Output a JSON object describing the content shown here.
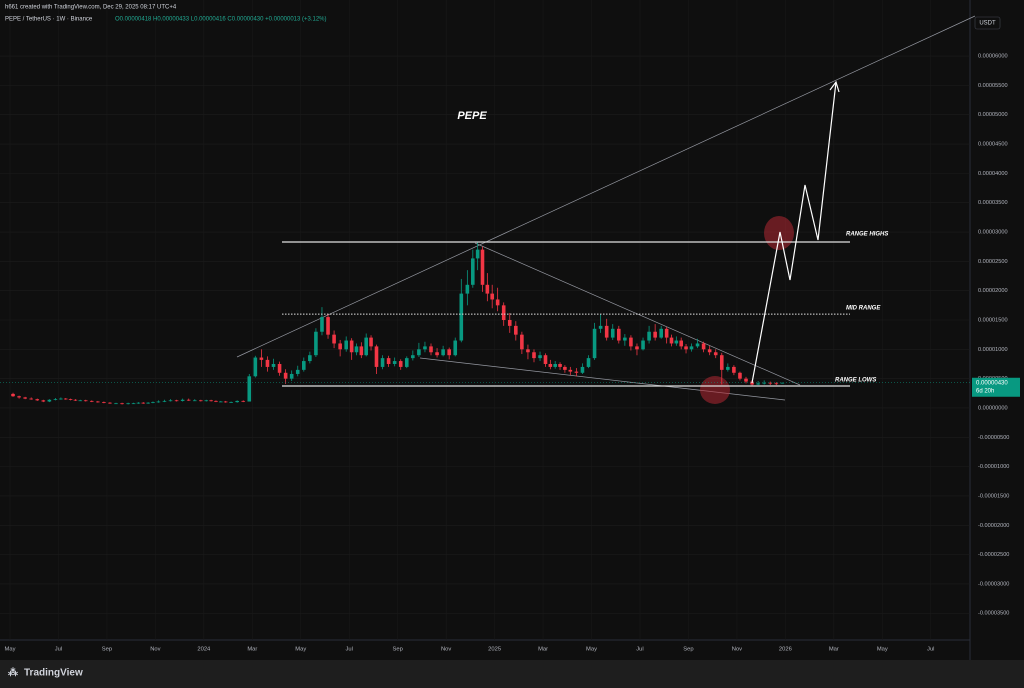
{
  "header": {
    "attribution": "h661 created with TradingView.com, Dec 29, 2025 08:17 UTC+4",
    "symbol": "PEPE / TetherUS · 1W · Binance",
    "ohlc_text": "O0.00000418 H0.00000433 L0.00000416 C0.00000430 +0.00000013 (+3.12%)"
  },
  "currency": "USDT",
  "footer": {
    "brand": "TradingView"
  },
  "chart_data": {
    "type": "candlestick",
    "title": "PEPE",
    "up_color": "#089981",
    "down_color": "#f23645",
    "x": [
      "2023-05",
      "2023-05",
      "2023-05",
      "2023-05",
      "2023-06",
      "2023-06",
      "2023-06",
      "2023-06",
      "2023-07",
      "2023-07",
      "2023-07",
      "2023-07",
      "2023-07",
      "2023-08",
      "2023-08",
      "2023-08",
      "2023-08",
      "2023-09",
      "2023-09",
      "2023-09",
      "2023-09",
      "2023-10",
      "2023-10",
      "2023-10",
      "2023-10",
      "2023-10",
      "2023-11",
      "2023-11",
      "2023-11",
      "2023-11",
      "2023-12",
      "2023-12",
      "2023-12",
      "2023-12",
      "2024-01",
      "2024-01",
      "2024-01",
      "2024-01",
      "2024-01",
      "2024-02",
      "2024-02",
      "2024-02",
      "2024-02",
      "2024-03",
      "2024-03",
      "2024-03",
      "2024-03",
      "2024-04",
      "2024-04",
      "2024-04",
      "2024-04",
      "2024-05",
      "2024-05",
      "2024-05",
      "2024-05",
      "2024-06",
      "2024-06",
      "2024-06",
      "2024-06",
      "2024-07",
      "2024-07",
      "2024-07",
      "2024-07",
      "2024-07",
      "2024-08",
      "2024-08",
      "2024-08",
      "2024-08",
      "2024-09",
      "2024-09",
      "2024-09",
      "2024-09",
      "2024-10",
      "2024-10",
      "2024-10",
      "2024-10",
      "2024-11",
      "2024-11",
      "2024-11",
      "2024-11",
      "2024-12",
      "2024-12",
      "2024-12",
      "2024-12",
      "2024-12",
      "2025-01",
      "2025-01",
      "2025-01",
      "2025-01",
      "2025-02",
      "2025-02",
      "2025-02",
      "2025-02",
      "2025-03",
      "2025-03",
      "2025-03",
      "2025-03",
      "2025-03",
      "2025-04",
      "2025-04",
      "2025-04",
      "2025-04",
      "2025-05",
      "2025-05",
      "2025-05",
      "2025-05",
      "2025-06",
      "2025-06",
      "2025-06",
      "2025-06",
      "2025-07",
      "2025-07",
      "2025-07",
      "2025-07",
      "2025-08",
      "2025-08",
      "2025-08",
      "2025-08",
      "2025-08",
      "2025-09",
      "2025-09",
      "2025-09",
      "2025-09",
      "2025-10",
      "2025-10",
      "2025-10",
      "2025-10",
      "2025-11",
      "2025-11",
      "2025-11",
      "2025-11",
      "2025-12",
      "2025-12",
      "2025-12",
      "2025-12"
    ],
    "ohlc": [
      [
        2.4e-06,
        2.6e-06,
        1.9e-06,
        2e-06
      ],
      [
        2e-06,
        2.1e-06,
        1.6e-06,
        1.8e-06
      ],
      [
        1.8e-06,
        1.9e-06,
        1.5e-06,
        1.6e-06
      ],
      [
        1.6e-06,
        1.8e-06,
        1.4e-06,
        1.5e-06
      ],
      [
        1.5e-06,
        1.6e-06,
        1.2e-06,
        1.3e-06
      ],
      [
        1.3e-06,
        1.4e-06,
        1e-06,
        1.1e-06
      ],
      [
        1.1e-06,
        1.5e-06,
        1e-06,
        1.4e-06
      ],
      [
        1.4e-06,
        1.7e-06,
        1.3e-06,
        1.5e-06
      ],
      [
        1.5e-06,
        1.8e-06,
        1.4e-06,
        1.6e-06
      ],
      [
        1.6e-06,
        1.7e-06,
        1.4e-06,
        1.5e-06
      ],
      [
        1.5e-06,
        1.6e-06,
        1.3e-06,
        1.4e-06
      ],
      [
        1.4e-06,
        1.5e-06,
        1.2e-06,
        1.3e-06
      ],
      [
        1.3e-06,
        1.4e-06,
        1.2e-06,
        1.3e-06
      ],
      [
        1.3e-06,
        1.4e-06,
        1.1e-06,
        1.2e-06
      ],
      [
        1.2e-06,
        1.3e-06,
        1e-06,
        1.1e-06
      ],
      [
        1.1e-06,
        1.2e-06,
        9e-07,
        1e-06
      ],
      [
        1e-06,
        1.1e-06,
        8e-07,
        9e-07
      ],
      [
        9e-07,
        1e-06,
        7e-07,
        8e-07
      ],
      [
        8e-07,
        9e-07,
        7e-07,
        8e-07
      ],
      [
        8e-07,
        9e-07,
        6e-07,
        7e-07
      ],
      [
        7e-07,
        9e-07,
        6e-07,
        8e-07
      ],
      [
        8e-07,
        9e-07,
        7e-07,
        8e-07
      ],
      [
        8e-07,
        1e-06,
        7e-07,
        9e-07
      ],
      [
        9e-07,
        1e-06,
        7e-07,
        8e-07
      ],
      [
        8e-07,
        1e-06,
        7e-07,
        9e-07
      ],
      [
        9e-07,
        1.1e-06,
        8e-07,
        1e-06
      ],
      [
        1e-06,
        1.3e-06,
        9e-07,
        1.1e-06
      ],
      [
        1.1e-06,
        1.4e-06,
        1e-06,
        1.2e-06
      ],
      [
        1.2e-06,
        1.5e-06,
        1.1e-06,
        1.3e-06
      ],
      [
        1.3e-06,
        1.4e-06,
        1.1e-06,
        1.2e-06
      ],
      [
        1.2e-06,
        1.6e-06,
        1.1e-06,
        1.4e-06
      ],
      [
        1.4e-06,
        1.6e-06,
        1.2e-06,
        1.3e-06
      ],
      [
        1.3e-06,
        1.5e-06,
        1.2e-06,
        1.3e-06
      ],
      [
        1.3e-06,
        1.4e-06,
        1.1e-06,
        1.2e-06
      ],
      [
        1.2e-06,
        1.4e-06,
        1.1e-06,
        1.3e-06
      ],
      [
        1.3e-06,
        1.4e-06,
        1.1e-06,
        1.2e-06
      ],
      [
        1.2e-06,
        1.3e-06,
        1e-06,
        1.1e-06
      ],
      [
        1.1e-06,
        1.2e-06,
        1e-06,
        1.1e-06
      ],
      [
        1.1e-06,
        1.2e-06,
        9e-07,
        1e-06
      ],
      [
        1e-06,
        1.1e-06,
        9e-07,
        1e-06
      ],
      [
        1e-06,
        1.3e-06,
        9e-07,
        1.2e-06
      ],
      [
        1.2e-06,
        1.3e-06,
        1e-06,
        1.1e-06
      ],
      [
        1.1e-06,
        5.8e-06,
        1.1e-06,
        5.4e-06
      ],
      [
        5.4e-06,
        8.9e-06,
        5.2e-06,
        8.6e-06
      ],
      [
        8.6e-06,
        1e-05,
        7e-06,
        8.2e-06
      ],
      [
        8.2e-06,
        8.8e-06,
        6.2e-06,
        7e-06
      ],
      [
        7e-06,
        8.4e-06,
        6.5e-06,
        7.5e-06
      ],
      [
        7.5e-06,
        7.9e-06,
        5.5e-06,
        6e-06
      ],
      [
        6e-06,
        6.6e-06,
        4.1e-06,
        5e-06
      ],
      [
        5e-06,
        6.4e-06,
        4.6e-06,
        5.8e-06
      ],
      [
        5.8e-06,
        7.2e-06,
        5.4e-06,
        6.5e-06
      ],
      [
        6.5e-06,
        8.6e-06,
        6.2e-06,
        8e-06
      ],
      [
        8e-06,
        9.6e-06,
        7.6e-06,
        9e-06
      ],
      [
        9e-06,
        1.36e-05,
        8.7e-06,
        1.3e-05
      ],
      [
        1.3e-05,
        1.72e-05,
        1.24e-05,
        1.55e-05
      ],
      [
        1.55e-05,
        1.6e-05,
        1.18e-05,
        1.25e-05
      ],
      [
        1.25e-05,
        1.32e-05,
        1.02e-05,
        1.1e-05
      ],
      [
        1.1e-05,
        1.16e-05,
        8.8e-06,
        1e-05
      ],
      [
        1e-05,
        1.22e-05,
        9.6e-06,
        1.15e-05
      ],
      [
        1.15e-05,
        1.19e-05,
        8.2e-06,
        9.5e-06
      ],
      [
        9.5e-06,
        1.1e-05,
        9e-06,
        1.05e-05
      ],
      [
        1.05e-05,
        1.12e-05,
        8.5e-06,
        9e-06
      ],
      [
        9e-06,
        1.27e-05,
        8.8e-06,
        1.2e-05
      ],
      [
        1.2e-05,
        1.24e-05,
        9.8e-06,
        1.05e-05
      ],
      [
        1.05e-05,
        1.08e-05,
        5.8e-06,
        7e-06
      ],
      [
        7e-06,
        9e-06,
        6.6e-06,
        8.5e-06
      ],
      [
        8.5e-06,
        8.9e-06,
        7e-06,
        7.5e-06
      ],
      [
        7.5e-06,
        8.6e-06,
        7.1e-06,
        8e-06
      ],
      [
        8e-06,
        8.3e-06,
        6.5e-06,
        7e-06
      ],
      [
        7e-06,
        8.8e-06,
        6.8e-06,
        8.5e-06
      ],
      [
        8.5e-06,
        9.8e-06,
        8.1e-06,
        9e-06
      ],
      [
        9e-06,
        1.11e-05,
        8.7e-06,
        1e-05
      ],
      [
        1e-05,
        1.13e-05,
        9.5e-06,
        1.05e-05
      ],
      [
        1.05e-05,
        1.1e-05,
        9e-06,
        9.5e-06
      ],
      [
        9.5e-06,
        1.02e-05,
        8.6e-06,
        9e-06
      ],
      [
        9e-06,
        1.06e-05,
        8.8e-06,
        1e-05
      ],
      [
        1e-05,
        1.03e-05,
        8.3e-06,
        9e-06
      ],
      [
        9e-06,
        1.2e-05,
        8.8e-06,
        1.15e-05
      ],
      [
        1.15e-05,
        2.2e-05,
        1.12e-05,
        1.95e-05
      ],
      [
        1.95e-05,
        2.35e-05,
        1.75e-05,
        2.1e-05
      ],
      [
        2.1e-05,
        2.7e-05,
        2.05e-05,
        2.55e-05
      ],
      [
        2.55e-05,
        2.83e-05,
        2.35e-05,
        2.7e-05
      ],
      [
        2.7e-05,
        2.75e-05,
        1.98e-05,
        2.1e-05
      ],
      [
        2.1e-05,
        2.3e-05,
        1.82e-05,
        1.95e-05
      ],
      [
        1.95e-05,
        2.1e-05,
        1.7e-05,
        1.85e-05
      ],
      [
        1.85e-05,
        2.05e-05,
        1.65e-05,
        1.75e-05
      ],
      [
        1.75e-05,
        1.8e-05,
        1.4e-05,
        1.5e-05
      ],
      [
        1.5e-05,
        1.62e-05,
        1.28e-05,
        1.4e-05
      ],
      [
        1.4e-05,
        1.48e-05,
        1.15e-05,
        1.25e-05
      ],
      [
        1.25e-05,
        1.3e-05,
        9.2e-06,
        1e-05
      ],
      [
        1e-05,
        1.08e-05,
        8.3e-06,
        9.5e-06
      ],
      [
        9.5e-06,
        1e-05,
        7.8e-06,
        8.5e-06
      ],
      [
        8.5e-06,
        9.6e-06,
        8e-06,
        9e-06
      ],
      [
        9e-06,
        9.3e-06,
        7e-06,
        7.5e-06
      ],
      [
        7.5e-06,
        8.2e-06,
        6.6e-06,
        7e-06
      ],
      [
        7e-06,
        8e-06,
        6.7e-06,
        7.5e-06
      ],
      [
        7.5e-06,
        7.8e-06,
        6.5e-06,
        7e-06
      ],
      [
        7e-06,
        7.3e-06,
        6e-06,
        6.5e-06
      ],
      [
        6.5e-06,
        7e-06,
        5.6e-06,
        6.2e-06
      ],
      [
        6.2e-06,
        6.8e-06,
        5.4e-06,
        6e-06
      ],
      [
        6e-06,
        7.6e-06,
        5.8e-06,
        7e-06
      ],
      [
        7e-06,
        9e-06,
        6.8e-06,
        8.5e-06
      ],
      [
        8.5e-06,
        1.45e-05,
        8.2e-06,
        1.35e-05
      ],
      [
        1.35e-05,
        1.6e-05,
        1.28e-05,
        1.4e-05
      ],
      [
        1.4e-05,
        1.52e-05,
        1.15e-05,
        1.2e-05
      ],
      [
        1.2e-05,
        1.43e-05,
        1.16e-05,
        1.35e-05
      ],
      [
        1.35e-05,
        1.4e-05,
        1.1e-05,
        1.15e-05
      ],
      [
        1.15e-05,
        1.26e-05,
        1.06e-05,
        1.2e-05
      ],
      [
        1.2e-05,
        1.24e-05,
        9.8e-06,
        1.05e-05
      ],
      [
        1.05e-05,
        1.1e-05,
        9e-06,
        1e-05
      ],
      [
        1e-05,
        1.2e-05,
        9.8e-06,
        1.15e-05
      ],
      [
        1.15e-05,
        1.4e-05,
        1.1e-05,
        1.3e-05
      ],
      [
        1.3e-05,
        1.43e-05,
        1.15e-05,
        1.2e-05
      ],
      [
        1.2e-05,
        1.4e-05,
        1.18e-05,
        1.35e-05
      ],
      [
        1.35e-05,
        1.38e-05,
        1.1e-05,
        1.2e-05
      ],
      [
        1.2e-05,
        1.25e-05,
        1.05e-05,
        1.1e-05
      ],
      [
        1.1e-05,
        1.22e-05,
        1.06e-05,
        1.15e-05
      ],
      [
        1.15e-05,
        1.2e-05,
        1e-05,
        1.05e-05
      ],
      [
        1.05e-05,
        1.09e-05,
        9.3e-06,
        1e-05
      ],
      [
        1e-05,
        1.1e-05,
        9.6e-06,
        1.05e-05
      ],
      [
        1.05e-05,
        1.18e-05,
        1.02e-05,
        1.1e-05
      ],
      [
        1.1e-05,
        1.13e-05,
        9.5e-06,
        1e-05
      ],
      [
        1e-05,
        1.06e-05,
        9e-06,
        9.5e-06
      ],
      [
        9.5e-06,
        1e-05,
        8.5e-06,
        9e-06
      ],
      [
        9e-06,
        9.4e-06,
        4e-06,
        6.5e-06
      ],
      [
        6.5e-06,
        7.6e-06,
        6.2e-06,
        7e-06
      ],
      [
        7e-06,
        7.3e-06,
        5.6e-06,
        6e-06
      ],
      [
        6e-06,
        6.2e-06,
        4.7e-06,
        5e-06
      ],
      [
        5e-06,
        5.3e-06,
        4.2e-06,
        4.5e-06
      ],
      [
        4.5e-06,
        4.8e-06,
        3.7e-06,
        4e-06
      ],
      [
        4e-06,
        4.6e-06,
        3.9e-06,
        4.2e-06
      ],
      [
        4.2e-06,
        4.7e-06,
        4e-06,
        4.3e-06
      ],
      [
        4.3e-06,
        4.5e-06,
        3.9e-06,
        4.2e-06
      ],
      [
        4.2e-06,
        4.4e-06,
        3.9e-06,
        4.1e-06
      ],
      [
        4.18e-06,
        4.33e-06,
        4.16e-06,
        4.3e-06
      ]
    ],
    "xlim": [
      "2023-05",
      "2026-08"
    ],
    "xticks": [
      {
        "value": "2023-05",
        "label": "May"
      },
      {
        "value": "2023-07",
        "label": "Jul"
      },
      {
        "value": "2023-09",
        "label": "Sep"
      },
      {
        "value": "2023-11",
        "label": "Nov"
      },
      {
        "value": "2024-01",
        "label": "2024"
      },
      {
        "value": "2024-03",
        "label": "Mar"
      },
      {
        "value": "2024-05",
        "label": "May"
      },
      {
        "value": "2024-07",
        "label": "Jul"
      },
      {
        "value": "2024-09",
        "label": "Sep"
      },
      {
        "value": "2024-11",
        "label": "Nov"
      },
      {
        "value": "2025-01",
        "label": "2025"
      },
      {
        "value": "2025-03",
        "label": "Mar"
      },
      {
        "value": "2025-05",
        "label": "May"
      },
      {
        "value": "2025-07",
        "label": "Jul"
      },
      {
        "value": "2025-09",
        "label": "Sep"
      },
      {
        "value": "2025-11",
        "label": "Nov"
      },
      {
        "value": "2026-01",
        "label": "2026"
      },
      {
        "value": "2026-03",
        "label": "Mar"
      },
      {
        "value": "2026-05",
        "label": "May"
      },
      {
        "value": "2026-07",
        "label": "Jul"
      }
    ],
    "ylim": [
      -3.956e-05,
      6.956e-05
    ],
    "yticks": [
      {
        "value": 6e-05,
        "label": "0.00006000"
      },
      {
        "value": 5.5e-05,
        "label": "0.00005500"
      },
      {
        "value": 5e-05,
        "label": "0.00005000"
      },
      {
        "value": 4.5e-05,
        "label": "0.00004500"
      },
      {
        "value": 4e-05,
        "label": "0.00004000"
      },
      {
        "value": 3.5e-05,
        "label": "0.00003500"
      },
      {
        "value": 3e-05,
        "label": "0.00003000"
      },
      {
        "value": 2.5e-05,
        "label": "0.00002500"
      },
      {
        "value": 2e-05,
        "label": "0.00002000"
      },
      {
        "value": 1.5e-05,
        "label": "0.00001500"
      },
      {
        "value": 1e-05,
        "label": "0.00001000"
      },
      {
        "value": 5e-06,
        "label": "0.00000500"
      },
      {
        "value": 0,
        "label": "0.00000000"
      },
      {
        "value": -5e-06,
        "label": "-0.00000500"
      },
      {
        "value": -1e-05,
        "label": "-0.00001000"
      },
      {
        "value": -1.5e-05,
        "label": "-0.00001500"
      },
      {
        "value": -2e-05,
        "label": "-0.00002000"
      },
      {
        "value": -2.5e-05,
        "label": "-0.00002500"
      },
      {
        "value": -3e-05,
        "label": "-0.00003000"
      },
      {
        "value": -3.5e-05,
        "label": "-0.00003500"
      }
    ],
    "levels": [
      {
        "label": "RANGE HIGHS",
        "value": 2.83e-05,
        "style": "solid"
      },
      {
        "label": "MID RANGE",
        "value": 1.6e-05,
        "style": "dotted"
      },
      {
        "label": "RANGE LOWS",
        "value": 3.75e-06,
        "style": "solid"
      }
    ],
    "last_price": {
      "value": 4.3e-06,
      "label": "0.00000430"
    },
    "countdown": "6d 20h"
  }
}
